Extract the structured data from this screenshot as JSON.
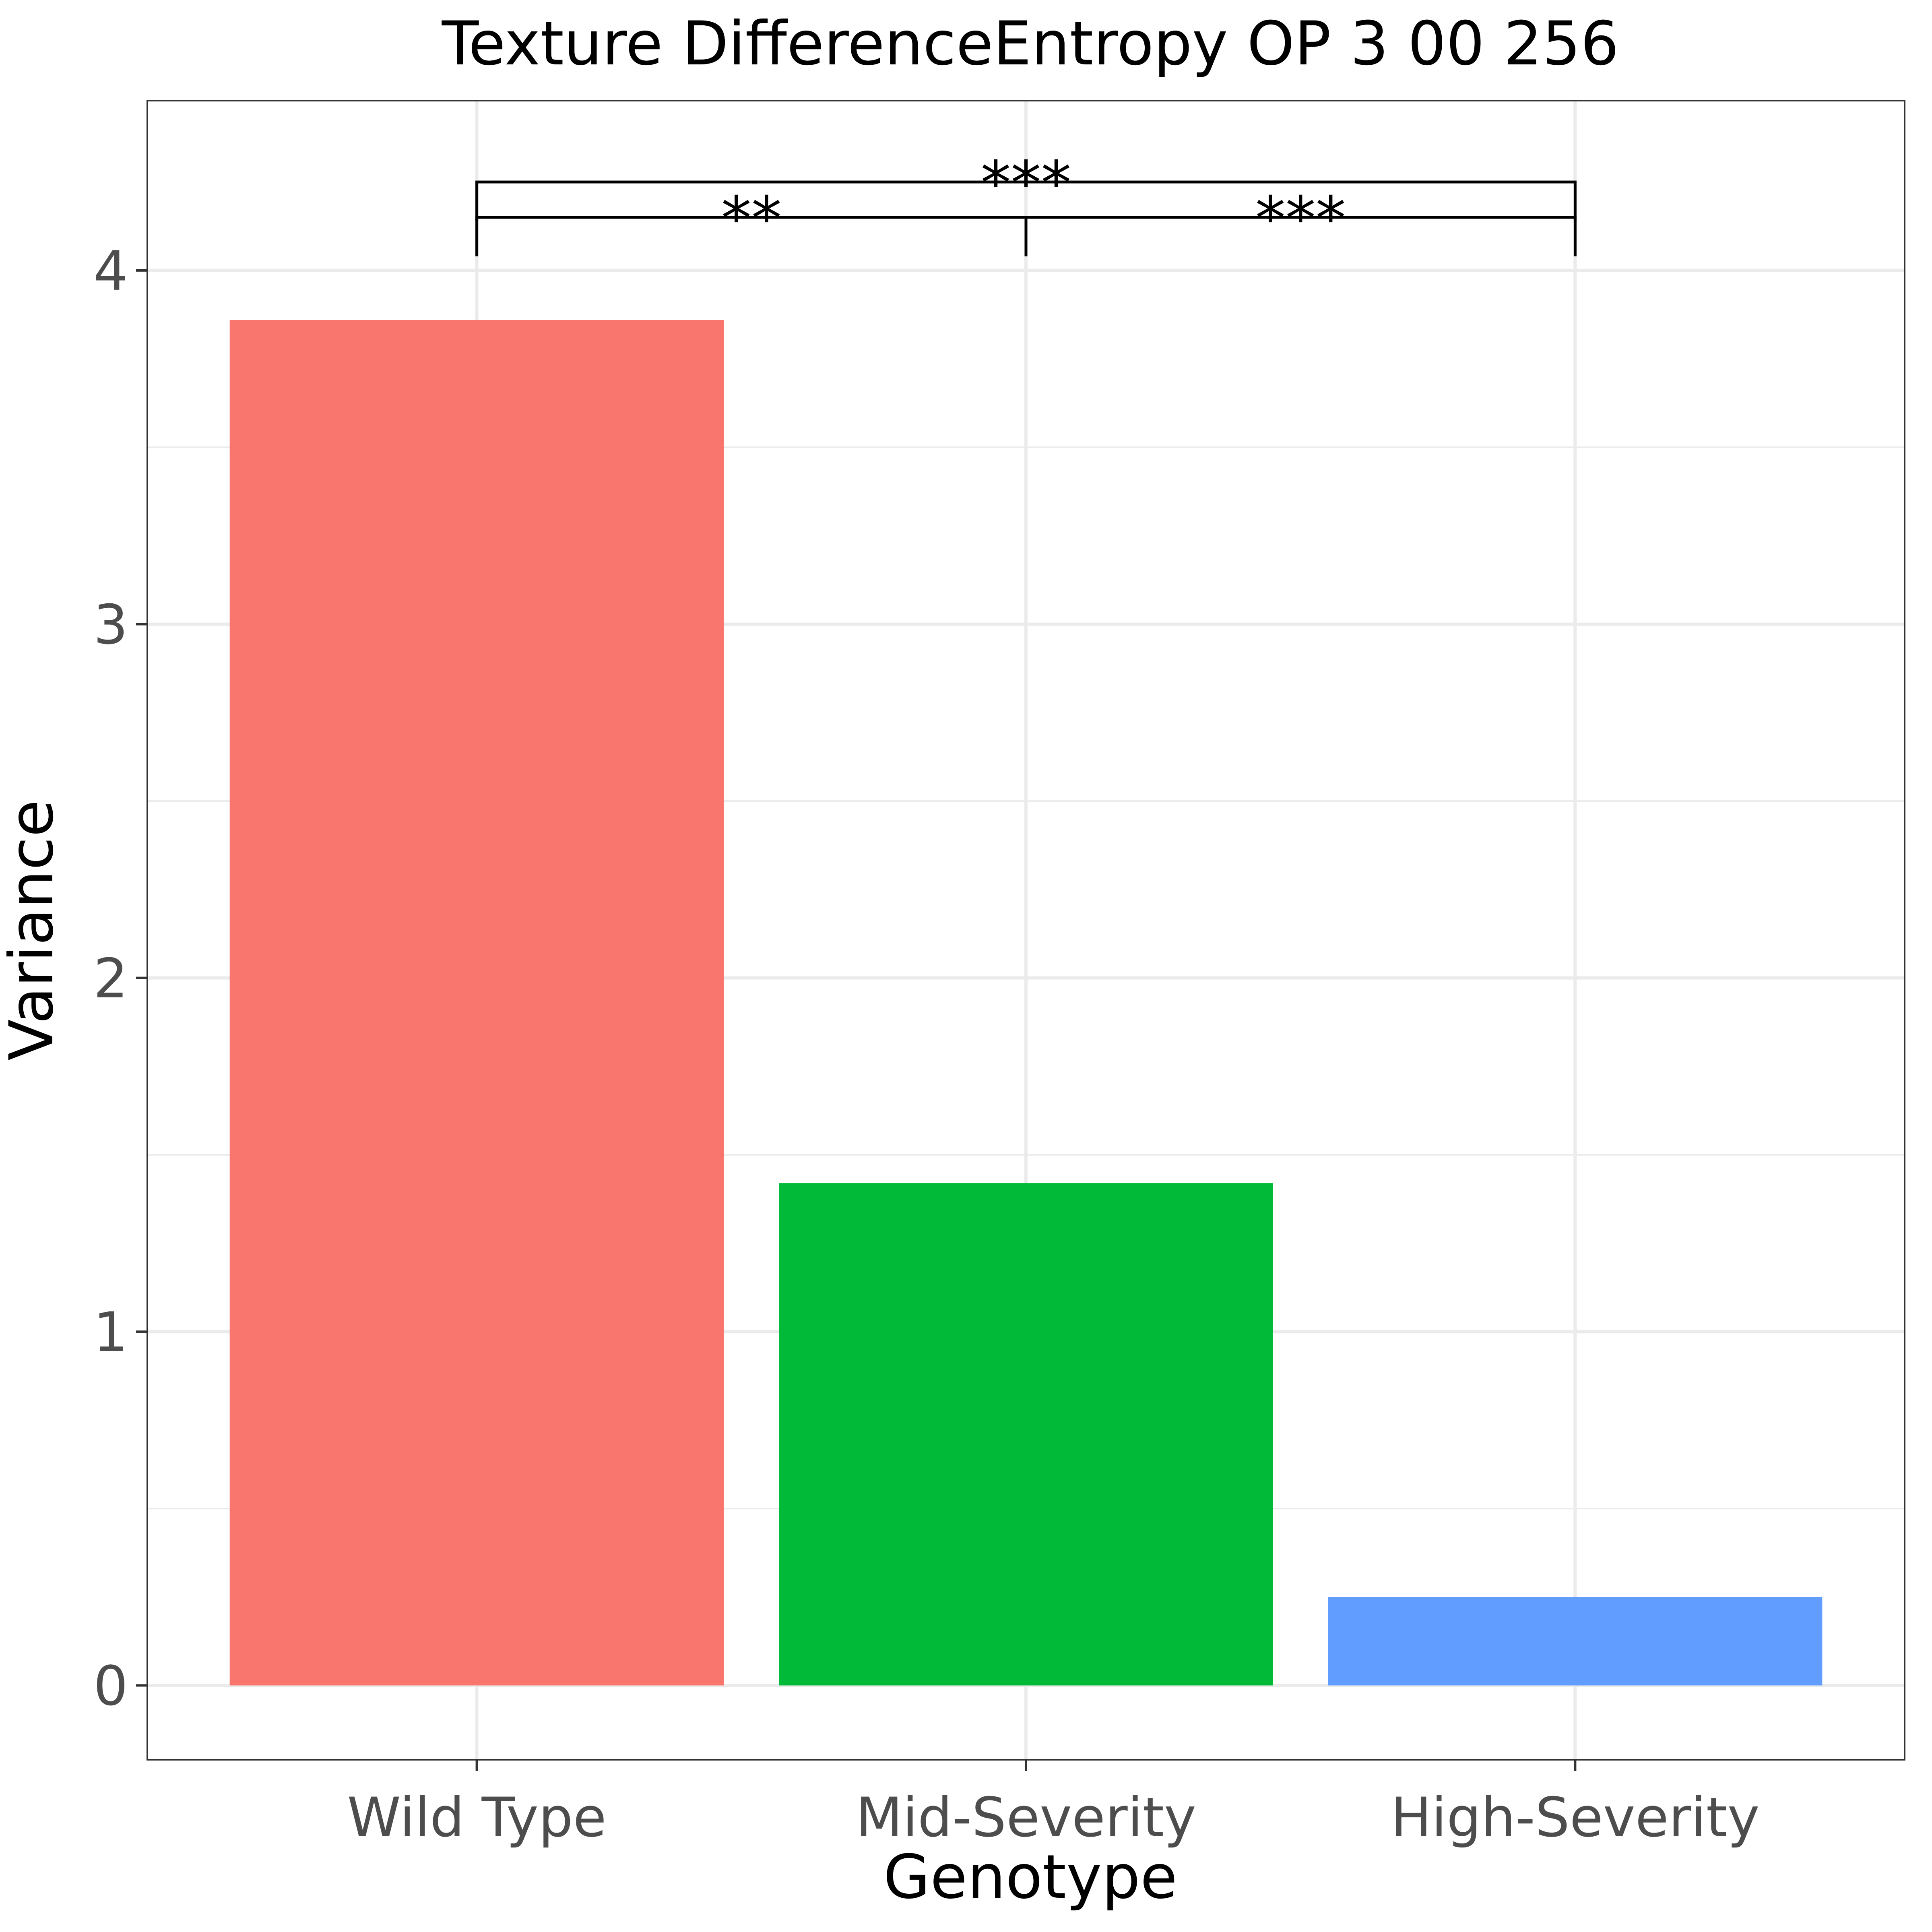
{
  "chart_data": {
    "type": "bar",
    "title": "Texture DifferenceEntropy OP 3 00 256",
    "xlabel": "Genotype",
    "ylabel": "Variance",
    "categories": [
      "Wild Type",
      "Mid-Severity",
      "High-Severity"
    ],
    "values": [
      3.86,
      1.42,
      0.25
    ],
    "colors": [
      "#F8766D",
      "#00BA38",
      "#619CFF"
    ],
    "yticks": [
      0,
      1,
      2,
      3,
      4
    ],
    "ylim": [
      -0.21,
      4.48
    ],
    "grid": true,
    "legend": "none",
    "annotations": [
      {
        "label": "**",
        "from": "Wild Type",
        "to": "Mid-Severity",
        "y": 4.15
      },
      {
        "label": "***",
        "from": "Mid-Severity",
        "to": "High-Severity",
        "y": 4.15
      },
      {
        "label": "***",
        "from": "Wild Type",
        "to": "High-Severity",
        "y": 4.25
      }
    ]
  }
}
